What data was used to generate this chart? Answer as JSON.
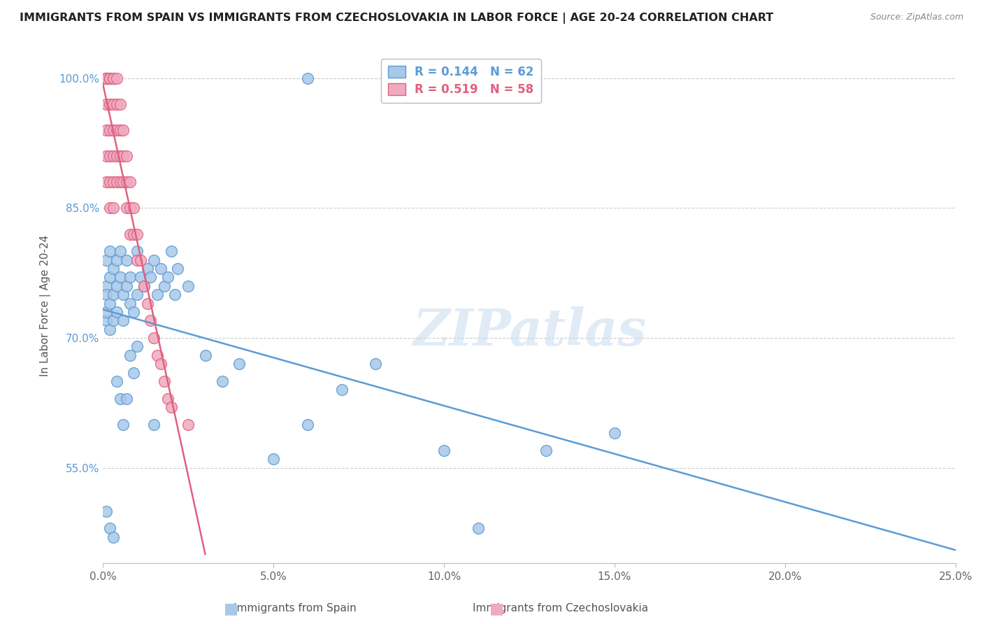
{
  "title": "IMMIGRANTS FROM SPAIN VS IMMIGRANTS FROM CZECHOSLOVAKIA IN LABOR FORCE | AGE 20-24 CORRELATION CHART",
  "source": "Source: ZipAtlas.com",
  "xlabel_spain": "Immigrants from Spain",
  "xlabel_czech": "Immigrants from Czechoslovakia",
  "ylabel": "In Labor Force | Age 20-24",
  "xmin": 0.0,
  "xmax": 0.25,
  "ymin": 0.44,
  "ymax": 1.035,
  "spain_R": 0.144,
  "spain_N": 62,
  "czech_R": 0.519,
  "czech_N": 58,
  "spain_color": "#A8C8E8",
  "czech_color": "#F0AABF",
  "spain_edge_color": "#5B9BD5",
  "czech_edge_color": "#E06080",
  "spain_line_color": "#5B9BD5",
  "czech_line_color": "#E06080",
  "yticks": [
    0.55,
    0.7,
    0.85,
    1.0
  ],
  "ytick_labels": [
    "55.0%",
    "70.0%",
    "85.0%",
    "100.0%"
  ],
  "xticks": [
    0.0,
    0.05,
    0.1,
    0.15,
    0.2,
    0.25
  ],
  "xtick_labels": [
    "0.0%",
    "5.0%",
    "10.0%",
    "15.0%",
    "20.0%",
    "25.0%"
  ],
  "spain_x": [
    0.001,
    0.001,
    0.001,
    0.001,
    0.001,
    0.002,
    0.002,
    0.002,
    0.002,
    0.003,
    0.003,
    0.003,
    0.004,
    0.004,
    0.004,
    0.005,
    0.005,
    0.006,
    0.006,
    0.007,
    0.007,
    0.008,
    0.008,
    0.009,
    0.01,
    0.01,
    0.011,
    0.012,
    0.013,
    0.014,
    0.015,
    0.016,
    0.017,
    0.018,
    0.019,
    0.02,
    0.021,
    0.022,
    0.025,
    0.03,
    0.035,
    0.04,
    0.05,
    0.06,
    0.07,
    0.08,
    0.1,
    0.11,
    0.13,
    0.15,
    0.001,
    0.002,
    0.003,
    0.004,
    0.005,
    0.006,
    0.007,
    0.008,
    0.009,
    0.01,
    0.015,
    0.06
  ],
  "spain_y": [
    0.76,
    0.79,
    0.72,
    0.75,
    0.73,
    0.8,
    0.77,
    0.74,
    0.71,
    0.78,
    0.75,
    0.72,
    0.79,
    0.76,
    0.73,
    0.8,
    0.77,
    0.75,
    0.72,
    0.79,
    0.76,
    0.77,
    0.74,
    0.73,
    0.8,
    0.75,
    0.77,
    0.76,
    0.78,
    0.77,
    0.79,
    0.75,
    0.78,
    0.76,
    0.77,
    0.8,
    0.75,
    0.78,
    0.76,
    0.68,
    0.65,
    0.67,
    0.56,
    0.6,
    0.64,
    0.67,
    0.57,
    0.48,
    0.57,
    0.59,
    0.5,
    0.48,
    0.47,
    0.65,
    0.63,
    0.6,
    0.63,
    0.68,
    0.66,
    0.69,
    0.6,
    1.0
  ],
  "czech_x": [
    0.001,
    0.001,
    0.001,
    0.001,
    0.001,
    0.001,
    0.001,
    0.001,
    0.001,
    0.001,
    0.002,
    0.002,
    0.002,
    0.002,
    0.002,
    0.002,
    0.002,
    0.002,
    0.003,
    0.003,
    0.003,
    0.003,
    0.003,
    0.003,
    0.003,
    0.004,
    0.004,
    0.004,
    0.004,
    0.004,
    0.005,
    0.005,
    0.005,
    0.005,
    0.006,
    0.006,
    0.006,
    0.007,
    0.007,
    0.007,
    0.008,
    0.008,
    0.008,
    0.009,
    0.009,
    0.01,
    0.01,
    0.011,
    0.012,
    0.013,
    0.014,
    0.015,
    0.016,
    0.017,
    0.018,
    0.019,
    0.02,
    0.025
  ],
  "czech_y": [
    1.0,
    1.0,
    1.0,
    1.0,
    1.0,
    1.0,
    0.97,
    0.94,
    0.91,
    0.88,
    1.0,
    1.0,
    1.0,
    0.97,
    0.94,
    0.91,
    0.88,
    0.85,
    1.0,
    1.0,
    0.97,
    0.94,
    0.91,
    0.88,
    0.85,
    1.0,
    0.97,
    0.94,
    0.91,
    0.88,
    0.97,
    0.94,
    0.91,
    0.88,
    0.94,
    0.91,
    0.88,
    0.91,
    0.88,
    0.85,
    0.88,
    0.85,
    0.82,
    0.85,
    0.82,
    0.82,
    0.79,
    0.79,
    0.76,
    0.74,
    0.72,
    0.7,
    0.68,
    0.67,
    0.65,
    0.63,
    0.62,
    0.6
  ]
}
